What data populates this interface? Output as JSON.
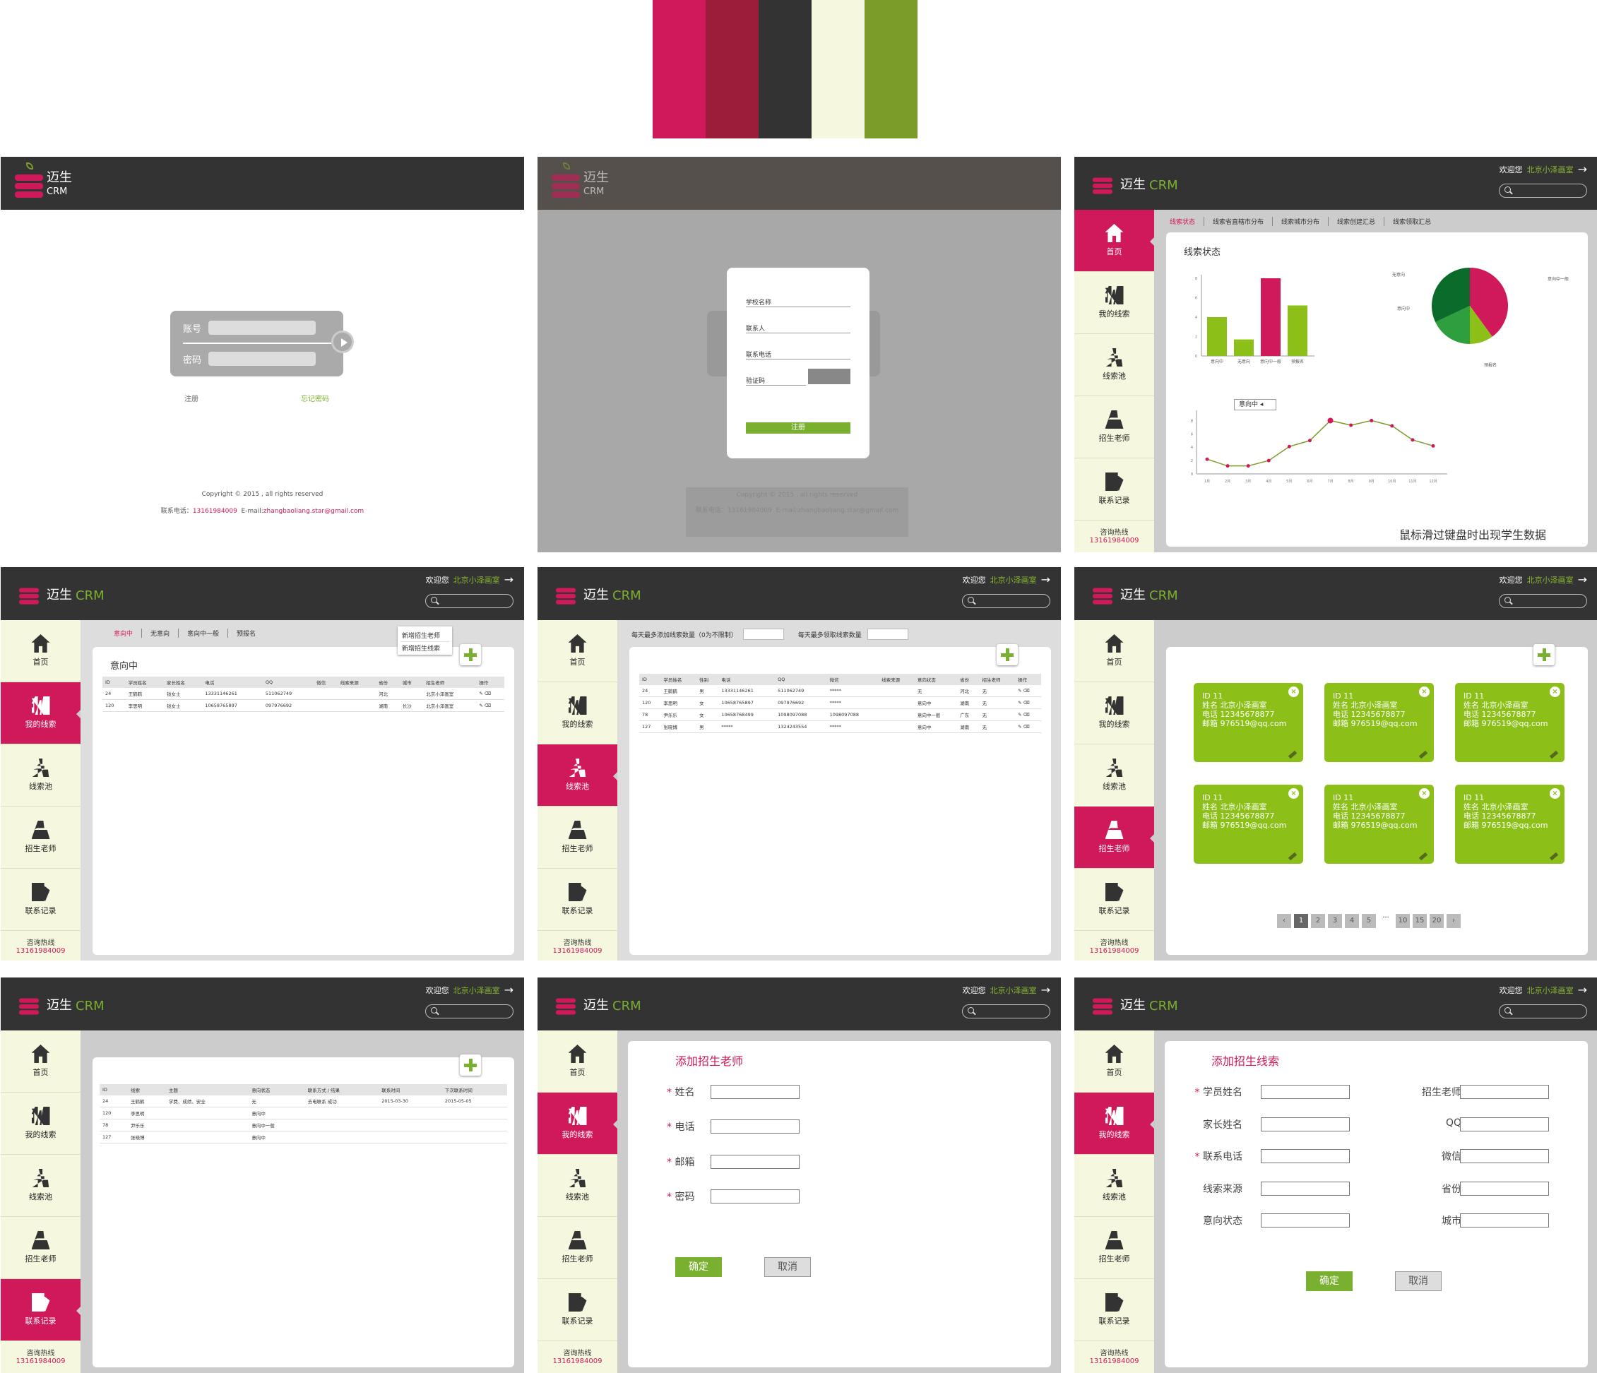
{
  "palette": [
    "#d0195a",
    "#9b1d3a",
    "#333333",
    "#f5f7df",
    "#7c9c2a"
  ],
  "brand": {
    "name": "迈生",
    "crm": "CRM"
  },
  "header": {
    "welcome": "欢迎您",
    "school": "北京小泽画室"
  },
  "nav": [
    "首页",
    "我的线索",
    "线索池",
    "招生老师",
    "联系记录"
  ],
  "hotline": {
    "label": "咨询热线",
    "number": "13161984009"
  },
  "login": {
    "account": "账号",
    "password": "密码",
    "register": "注册",
    "forgot": "忘记密码",
    "copyright": "Copyright © 2015 , all rights reserved",
    "contact_label": "联系电话：",
    "contact_phone": "13161984009",
    "email_label": "E-mail:",
    "email": "zhangbaoliang.star@gmail.com"
  },
  "register": {
    "school": "学校名称",
    "contact": "联系人",
    "phone": "联系电话",
    "captcha": "验证码",
    "submit": "注册"
  },
  "home": {
    "tabs": [
      "线索状态",
      "线索省直辖市分布",
      "线索城市分布",
      "线索创建汇总",
      "线索领取汇总"
    ],
    "title": "线索状态",
    "hint": "鼠标滑过键盘时出现学生数据",
    "select": "意向中",
    "pie_labels": [
      "无意向",
      "意向中一般",
      "意向中",
      "预报名"
    ]
  },
  "chart_data": [
    {
      "type": "bar",
      "categories": [
        "意向中",
        "无意向",
        "意向中一般",
        "预报名"
      ],
      "values": [
        4,
        1.7,
        8,
        5.2
      ],
      "ylim": [
        0,
        8
      ],
      "colors": [
        "#8cc019",
        "#8cc019",
        "#d0195a",
        "#8cc019"
      ]
    },
    {
      "type": "pie",
      "categories": [
        "意向中",
        "无意向",
        "意向中一般",
        "预报名"
      ],
      "values": [
        40,
        10,
        18,
        32
      ],
      "colors": [
        "#d0195a",
        "#8cc019",
        "#2e9e3e",
        "#0a6b2a"
      ]
    },
    {
      "type": "line",
      "x": [
        "1月",
        "2月",
        "3月",
        "4月",
        "5月",
        "6月",
        "7月",
        "8月",
        "9月",
        "10月",
        "11月",
        "12月"
      ],
      "values": [
        2.2,
        1.2,
        1.2,
        2,
        4.1,
        5,
        8,
        7.3,
        8,
        7.2,
        5.1,
        4.2
      ],
      "ylim": [
        0,
        9
      ]
    }
  ],
  "myclues": {
    "tabs": [
      "意向中",
      "无意向",
      "意向中一般",
      "预报名"
    ],
    "title": "意向中",
    "menu": [
      "新增招生老师",
      "新增招生线索"
    ],
    "headers": [
      "ID",
      "学员姓名",
      "家长姓名",
      "电话",
      "QQ",
      "微信",
      "线索来源",
      "省份",
      "城市",
      "招生老师",
      "操作"
    ],
    "rows": [
      [
        "24",
        "王鹤鹤",
        "钱女士",
        "13331146261",
        "511062749",
        "",
        "",
        "河北",
        "",
        "北京小泽画室"
      ],
      [
        "120",
        "李思明",
        "钱女士",
        "10658765897",
        "097976692",
        "",
        "",
        "湖南",
        "长沙",
        "北京小泽画室"
      ]
    ]
  },
  "pool": {
    "limit_add": "每天最多添加线索数量（0为不限制）",
    "limit_get": "每天最多领取线索数量",
    "headers": [
      "ID",
      "学员姓名",
      "性别",
      "电话",
      "QQ",
      "微信",
      "线索来源",
      "意向状态",
      "省份",
      "招生老师",
      "操作"
    ],
    "rows": [
      [
        "24",
        "王鹤鹤",
        "男",
        "13331146261",
        "511062749",
        "*****",
        "",
        "无",
        "河北",
        "无"
      ],
      [
        "120",
        "李思明",
        "女",
        "10658765897",
        "097976692",
        "*****",
        "",
        "意向中",
        "湖南",
        "无"
      ],
      [
        "78",
        "尹乐乐",
        "女",
        "10658768499",
        "1098097088",
        "1098097088",
        "",
        "意向中一般",
        "广东",
        "无"
      ],
      [
        "127",
        "张晓博",
        "男",
        "*****",
        "1324243554",
        "*****",
        "",
        "意向中",
        "湖南",
        "无"
      ]
    ]
  },
  "teachers": {
    "cards": [
      {
        "id": "ID  11",
        "name": "姓名 北京小泽画室",
        "phone": "电话 12345678877",
        "email": "邮箱 976519@qq.com"
      },
      {
        "id": "ID  11",
        "name": "姓名 北京小泽画室",
        "phone": "电话 12345678877",
        "email": "邮箱 976519@qq.com"
      },
      {
        "id": "ID  11",
        "name": "姓名 北京小泽画室",
        "phone": "电话 12345678877",
        "email": "邮箱 976519@qq.com"
      },
      {
        "id": "ID  11",
        "name": "姓名 北京小泽画室",
        "phone": "电话 12345678877",
        "email": "邮箱 976519@qq.com"
      },
      {
        "id": "ID  11",
        "name": "姓名 北京小泽画室",
        "phone": "电话 12345678877",
        "email": "邮箱 976519@qq.com"
      },
      {
        "id": "ID  11",
        "name": "姓名 北京小泽画室",
        "phone": "电话 12345678877",
        "email": "邮箱 976519@qq.com"
      }
    ],
    "pages": [
      "1",
      "2",
      "3",
      "4",
      "5",
      "···",
      "10",
      "15",
      "20"
    ]
  },
  "records": {
    "headers": [
      "ID",
      "线索",
      "主题",
      "意向状态",
      "联系方式 / 结果",
      "联系时间",
      "下次联系时间"
    ],
    "rows": [
      [
        "24",
        "王鹤鹤",
        "学费、成绩、安全",
        "无",
        "去电联系 成功",
        "2015-03-30",
        "2015-05-05"
      ],
      [
        "120",
        "李思明",
        "",
        "意向中",
        "",
        "",
        ""
      ],
      [
        "78",
        "尹乐乐",
        "",
        "意向中一般",
        "",
        "",
        ""
      ],
      [
        "127",
        "张晓博",
        "",
        "意向中",
        "",
        "",
        ""
      ]
    ]
  },
  "add_teacher": {
    "title": "添加招生老师",
    "fields": [
      "姓名",
      "电话",
      "邮箱",
      "密码"
    ],
    "ok": "确定",
    "cancel": "取消"
  },
  "add_clue": {
    "title": "添加招生线索",
    "left": [
      "学员姓名",
      "家长姓名",
      "联系电话",
      "线索来源",
      "意向状态"
    ],
    "right": [
      "招生老师",
      "QQ",
      "微信",
      "省份",
      "城市"
    ],
    "ok": "确定",
    "cancel": "取消"
  }
}
